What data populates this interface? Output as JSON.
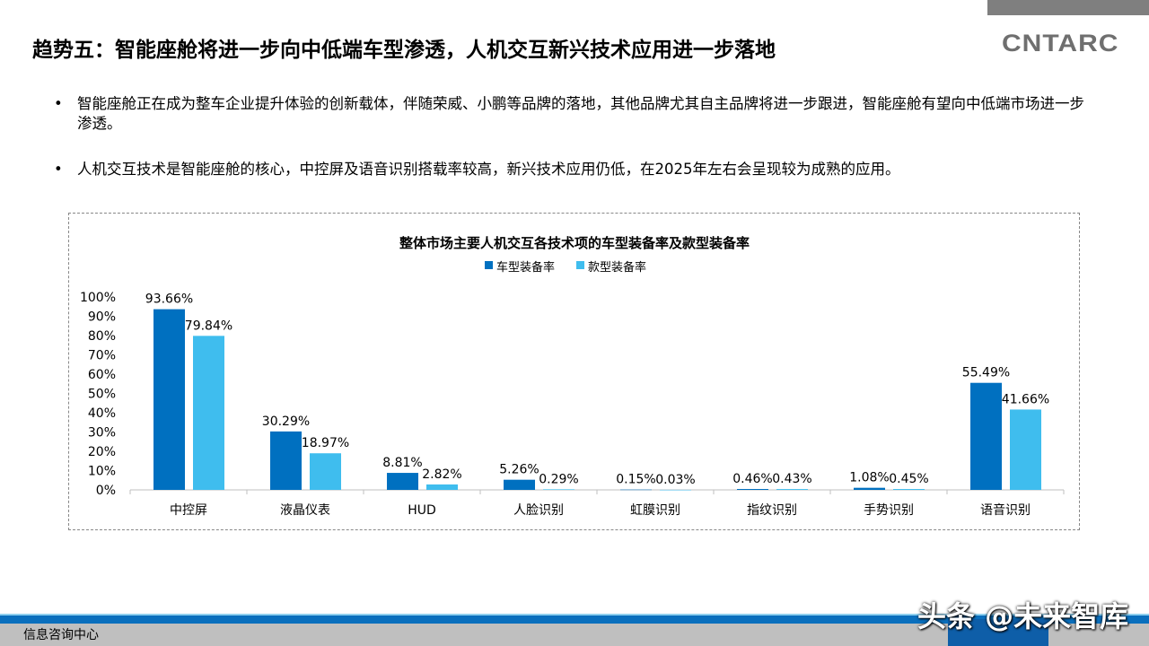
{
  "header": {
    "title": "趋势五：智能座舱将进一步向中低端车型渗透，人机交互新兴技术应用进一步落地",
    "logo": "CNTARC"
  },
  "bullets": [
    {
      "marker": "•",
      "text": "智能座舱正在成为整车企业提升体验的创新载体，伴随荣威、小鹏等品牌的落地，其他品牌尤其自主品牌将进一步跟进，智能座舱有望向中低端市场进一步渗透。"
    },
    {
      "marker": "•",
      "text": "人机交互技术是智能座舱的核心，中控屏及语音识别搭载率较高，新兴技术应用仍低，在2025年左右会呈现较为成熟的应用。"
    }
  ],
  "chart_data": {
    "type": "bar",
    "title": "整体市场主要人机交互各技术项的车型装备率及款型装备率",
    "categories": [
      "中控屏",
      "液晶仪表",
      "HUD",
      "人脸识别",
      "虹膜识别",
      "指纹识别",
      "手势识别",
      "语音识别"
    ],
    "series": [
      {
        "name": "车型装备率",
        "color": "#0070c0",
        "values": [
          93.66,
          30.29,
          8.81,
          5.26,
          0.15,
          0.46,
          1.08,
          55.49
        ],
        "labels": [
          "93.66%",
          "30.29%",
          "8.81%",
          "5.26%",
          "0.15%",
          "0.46%",
          "1.08%",
          "55.49%"
        ]
      },
      {
        "name": "款型装备率",
        "color": "#3fbdee",
        "values": [
          79.84,
          18.97,
          2.82,
          0.29,
          0.03,
          0.43,
          0.45,
          41.66
        ],
        "labels": [
          "79.84%",
          "18.97%",
          "2.82%",
          "0.29%",
          "0.03%",
          "0.43%",
          "0.45%",
          "41.66%"
        ]
      }
    ],
    "yticks": [
      "0%",
      "10%",
      "20%",
      "30%",
      "40%",
      "50%",
      "60%",
      "70%",
      "80%",
      "90%",
      "100%"
    ],
    "ylim": [
      0,
      100
    ],
    "legend": "top-center",
    "grid": false
  },
  "footer": {
    "label": "信息咨询中心",
    "watermark": "头条 @未来智库"
  }
}
